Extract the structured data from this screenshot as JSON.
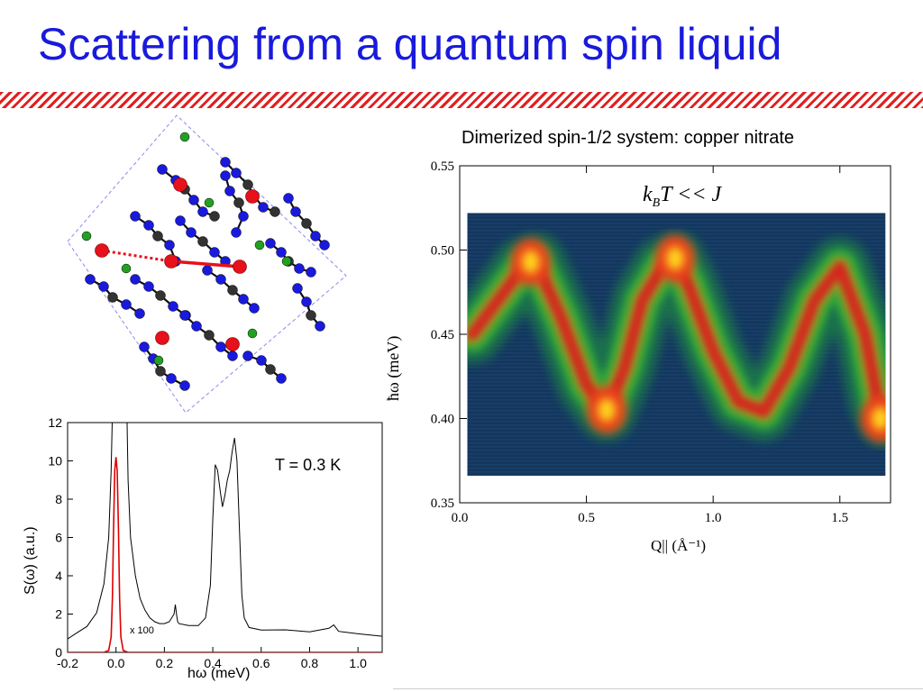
{
  "slide": {
    "title": "Scattering from a quantum spin liquid",
    "subtitle": "Dimerized spin-1/2 system: copper nitrate"
  },
  "colors": {
    "title": "#1a1adc",
    "stripe": "#e02020",
    "atom_blue": "#1a1add",
    "atom_red": "#e8101a",
    "atom_green": "#22a022",
    "atom_gray": "#333333",
    "spectrum_black": "#000000",
    "spectrum_red": "#e00000"
  },
  "crystal_structure": {
    "icon": "copper-nitrate-crystal-structure"
  },
  "chart_data": [
    {
      "type": "line",
      "annotation": "T = 0.3 K",
      "red_curve_label": "x 100",
      "xlabel": "hω (meV)",
      "ylabel": "S(ω) (a.u.)",
      "xlim": [
        -0.2,
        1.1
      ],
      "ylim": [
        0,
        12
      ],
      "x_ticks": [
        "-0.2",
        "0.0",
        "0.2",
        "0.4",
        "0.6",
        "0.8",
        "1.0"
      ],
      "y_ticks": [
        "0",
        "2",
        "4",
        "6",
        "8",
        "10",
        "12"
      ],
      "series": [
        {
          "color": "#000000",
          "x": [
            -0.2,
            -0.16,
            -0.12,
            -0.08,
            -0.05,
            -0.03,
            -0.02,
            -0.015,
            -0.01,
            0.0,
            0.03,
            0.04,
            0.045,
            0.05,
            0.06,
            0.08,
            0.1,
            0.12,
            0.14,
            0.16,
            0.18,
            0.2,
            0.22,
            0.24,
            0.245,
            0.25,
            0.255,
            0.26,
            0.3,
            0.34,
            0.37,
            0.39,
            0.4,
            0.41,
            0.42,
            0.43,
            0.44,
            0.45,
            0.46,
            0.47,
            0.48,
            0.49,
            0.5,
            0.51,
            0.52,
            0.53,
            0.55,
            0.6,
            0.7,
            0.8,
            0.88,
            0.9,
            0.92,
            1.0,
            1.1
          ],
          "y": [
            0.7,
            1.0,
            1.3,
            2.0,
            3.5,
            6.0,
            9.5,
            12.5,
            12.5,
            12.5,
            12.5,
            12.5,
            12.5,
            9.0,
            6.0,
            4.0,
            2.8,
            2.2,
            1.8,
            1.6,
            1.5,
            1.5,
            1.6,
            2.0,
            2.5,
            2.0,
            1.6,
            1.5,
            1.4,
            1.4,
            1.8,
            3.5,
            7.0,
            9.8,
            9.5,
            8.5,
            7.6,
            8.2,
            9.0,
            9.5,
            10.5,
            11.2,
            10.0,
            6.5,
            3.0,
            1.8,
            1.3,
            1.1,
            1.1,
            1.0,
            1.2,
            1.4,
            1.1,
            1.0,
            0.9
          ]
        },
        {
          "color": "#e00000",
          "x": [
            -0.2,
            -0.1,
            -0.05,
            -0.03,
            -0.02,
            -0.015,
            -0.01,
            -0.005,
            0.0,
            0.005,
            0.01,
            0.015,
            0.02,
            0.03,
            0.05,
            0.1,
            1.1
          ],
          "y": [
            0,
            0,
            0,
            0.1,
            0.8,
            2.8,
            6.5,
            9.5,
            10.2,
            9.5,
            6.5,
            2.8,
            0.8,
            0.1,
            0,
            0,
            0
          ]
        }
      ]
    },
    {
      "type": "heatmap",
      "annotation": "k_B T << J",
      "xlabel": "Q|| (Å⁻¹)",
      "ylabel": "ħω (meV)",
      "xlim": [
        0.0,
        1.7
      ],
      "ylim": [
        0.35,
        0.55
      ],
      "x_ticks": [
        "0.0",
        "0.5",
        "1.0",
        "1.5"
      ],
      "y_ticks": [
        "0.35",
        "0.40",
        "0.45",
        "0.50",
        "0.55"
      ],
      "data_extent": {
        "x": [
          0.03,
          1.68
        ],
        "y": [
          0.366,
          0.522
        ]
      },
      "dispersion": {
        "q": [
          0.05,
          0.15,
          0.25,
          0.3,
          0.4,
          0.5,
          0.58,
          0.65,
          0.72,
          0.8,
          0.85,
          0.9,
          1.0,
          1.1,
          1.2,
          1.3,
          1.4,
          1.5,
          1.6,
          1.65,
          1.68
        ],
        "energy": [
          0.45,
          0.47,
          0.49,
          0.493,
          0.46,
          0.42,
          0.404,
          0.43,
          0.47,
          0.49,
          0.494,
          0.48,
          0.44,
          0.41,
          0.404,
          0.43,
          0.47,
          0.49,
          0.45,
          0.41,
          0.4
        ]
      },
      "hot_spots": [
        {
          "q": 0.28,
          "energy": 0.493
        },
        {
          "q": 0.58,
          "energy": 0.405
        },
        {
          "q": 0.85,
          "energy": 0.495
        },
        {
          "q": 1.66,
          "energy": 0.4
        }
      ]
    }
  ]
}
